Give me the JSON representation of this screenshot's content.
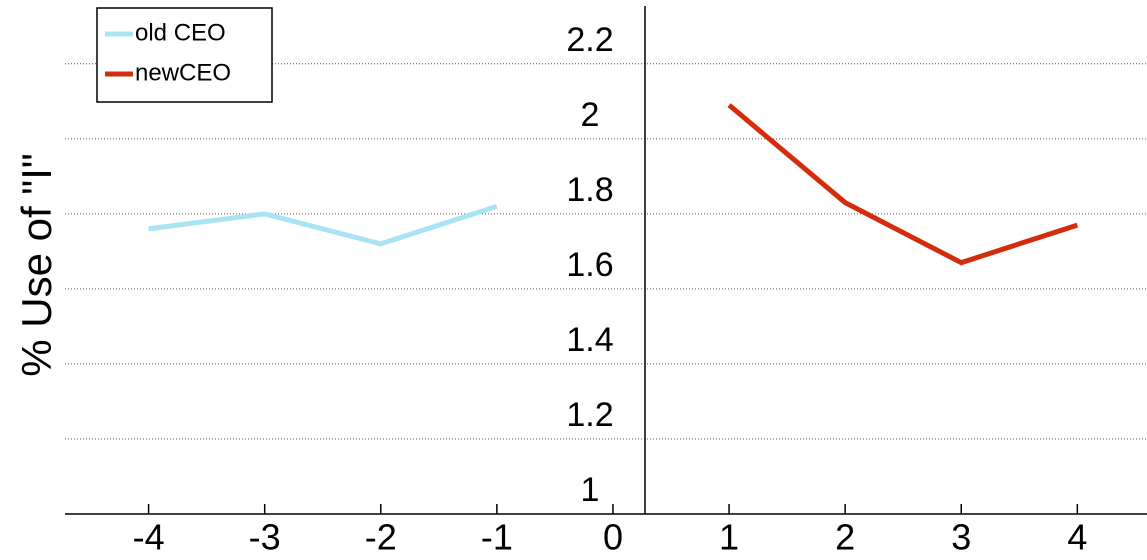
{
  "chart_data": {
    "type": "line",
    "y_label": "% Use of \"I\"",
    "x": [
      -4,
      -3,
      -2,
      -1,
      1,
      2,
      3,
      4
    ],
    "series": [
      {
        "name": "old CEO",
        "color": "#a8e4f4",
        "values": [
          1.76,
          1.8,
          1.72,
          1.82,
          null,
          null,
          null,
          null
        ]
      },
      {
        "name": "newCEO",
        "color": "#d42c0c",
        "values": [
          null,
          null,
          null,
          null,
          2.09,
          1.83,
          1.67,
          1.77
        ]
      }
    ],
    "xlim": [
      -4.72,
      4.6
    ],
    "xticks": [
      -4,
      -3,
      -2,
      -1,
      0,
      1,
      2,
      3,
      4
    ],
    "ylim": [
      1,
      2.37
    ],
    "yticks": [
      1,
      1.2,
      1.4,
      1.6,
      1.8,
      2,
      2.2
    ],
    "grid": true,
    "legend": "upper left"
  }
}
